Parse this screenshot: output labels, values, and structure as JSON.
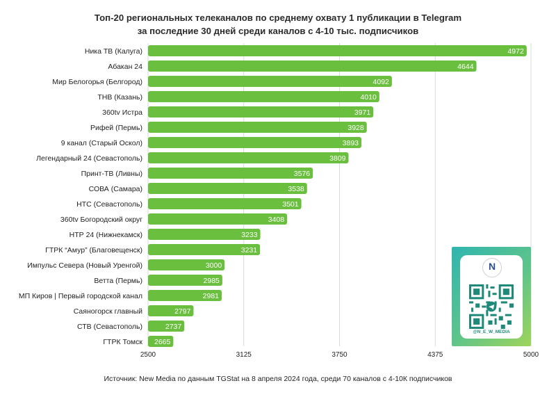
{
  "chart_data": {
    "type": "bar",
    "orientation": "horizontal",
    "title": "Топ-20 региональных телеканалов по среднему охвату 1 публикации в Telegram за последние 30 дней среди каналов с 4-10 тыс. подписчиков",
    "title_lines": [
      "Топ-20 региональных телеканалов по среднему охвату 1 публикации в Telegram",
      "за последние 30 дней среди каналов с 4-10 тыс. подписчиков"
    ],
    "categories": [
      "Ника ТВ (Калуга)",
      "Абакан 24",
      "Мир Белогорья (Белгород)",
      "ТНВ (Казань)",
      "360tv Истра",
      "Рифей (Пермь)",
      "9 канал (Старый Оскол)",
      "Легендарный 24 (Севастополь)",
      "Принт-ТВ (Ливны)",
      "СОВА (Самара)",
      "НТС (Севастополь)",
      "360tv Богородский округ",
      "НТР 24 (Нижнекамск)",
      "ГТРК “Амур” (Благовещенск)",
      "Импульс Севера (Новый Уренгой)",
      "Ветта (Пермь)",
      "МП Киров | Первый городской канал",
      "Саяногорск главный",
      "СТВ (Севастополь)",
      "ГТРК Томск"
    ],
    "values": [
      4972,
      4644,
      4092,
      4010,
      3971,
      3928,
      3893,
      3809,
      3576,
      3538,
      3501,
      3408,
      3233,
      3231,
      3000,
      2985,
      2981,
      2797,
      2737,
      2665
    ],
    "xlim": [
      2500,
      5000
    ],
    "x_ticks": [
      "2500",
      "3125",
      "3750",
      "4375",
      "5000"
    ],
    "grid": true,
    "bar_color": "#6abf3f",
    "source": "Источник: New Media по данным TGStat на 8 апреля 2024 года, среди 70 каналов с 4-10К подписчиков"
  },
  "promo": {
    "logo_letter": "N",
    "handle": "@N_E_W_MEDIA",
    "accent": "#2fb5b0"
  }
}
